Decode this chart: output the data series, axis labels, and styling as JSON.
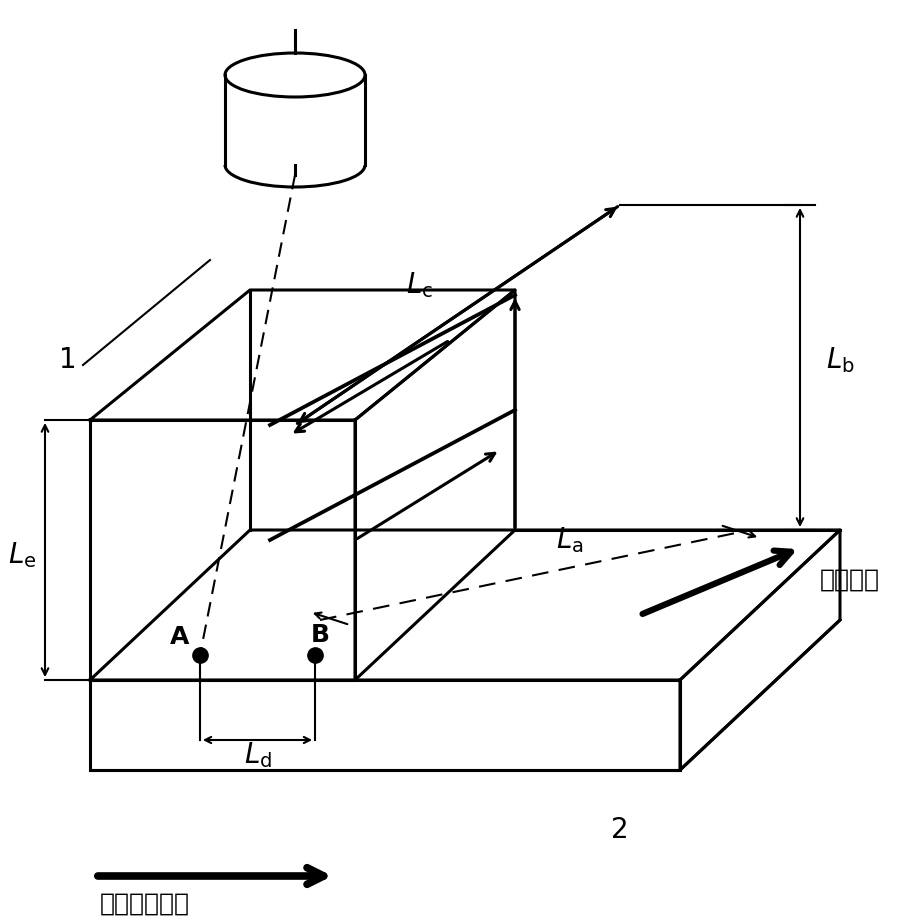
{
  "bg_color": "#ffffff",
  "line_color": "#000000",
  "label_1": "1",
  "label_2": "2",
  "label_La": "$L_\\mathrm{a}$",
  "label_Lb": "$L_\\mathrm{b}$",
  "label_Lc": "$L_\\mathrm{c}$",
  "label_Ld": "$L_\\mathrm{d}$",
  "label_Le": "$L_\\mathrm{e}$",
  "label_A": "A",
  "label_B": "B",
  "label_feed": "进给方向",
  "label_intermittent_feed": "间歇进给方向",
  "figsize": [
    9.16,
    9.24
  ],
  "dpi": 100
}
